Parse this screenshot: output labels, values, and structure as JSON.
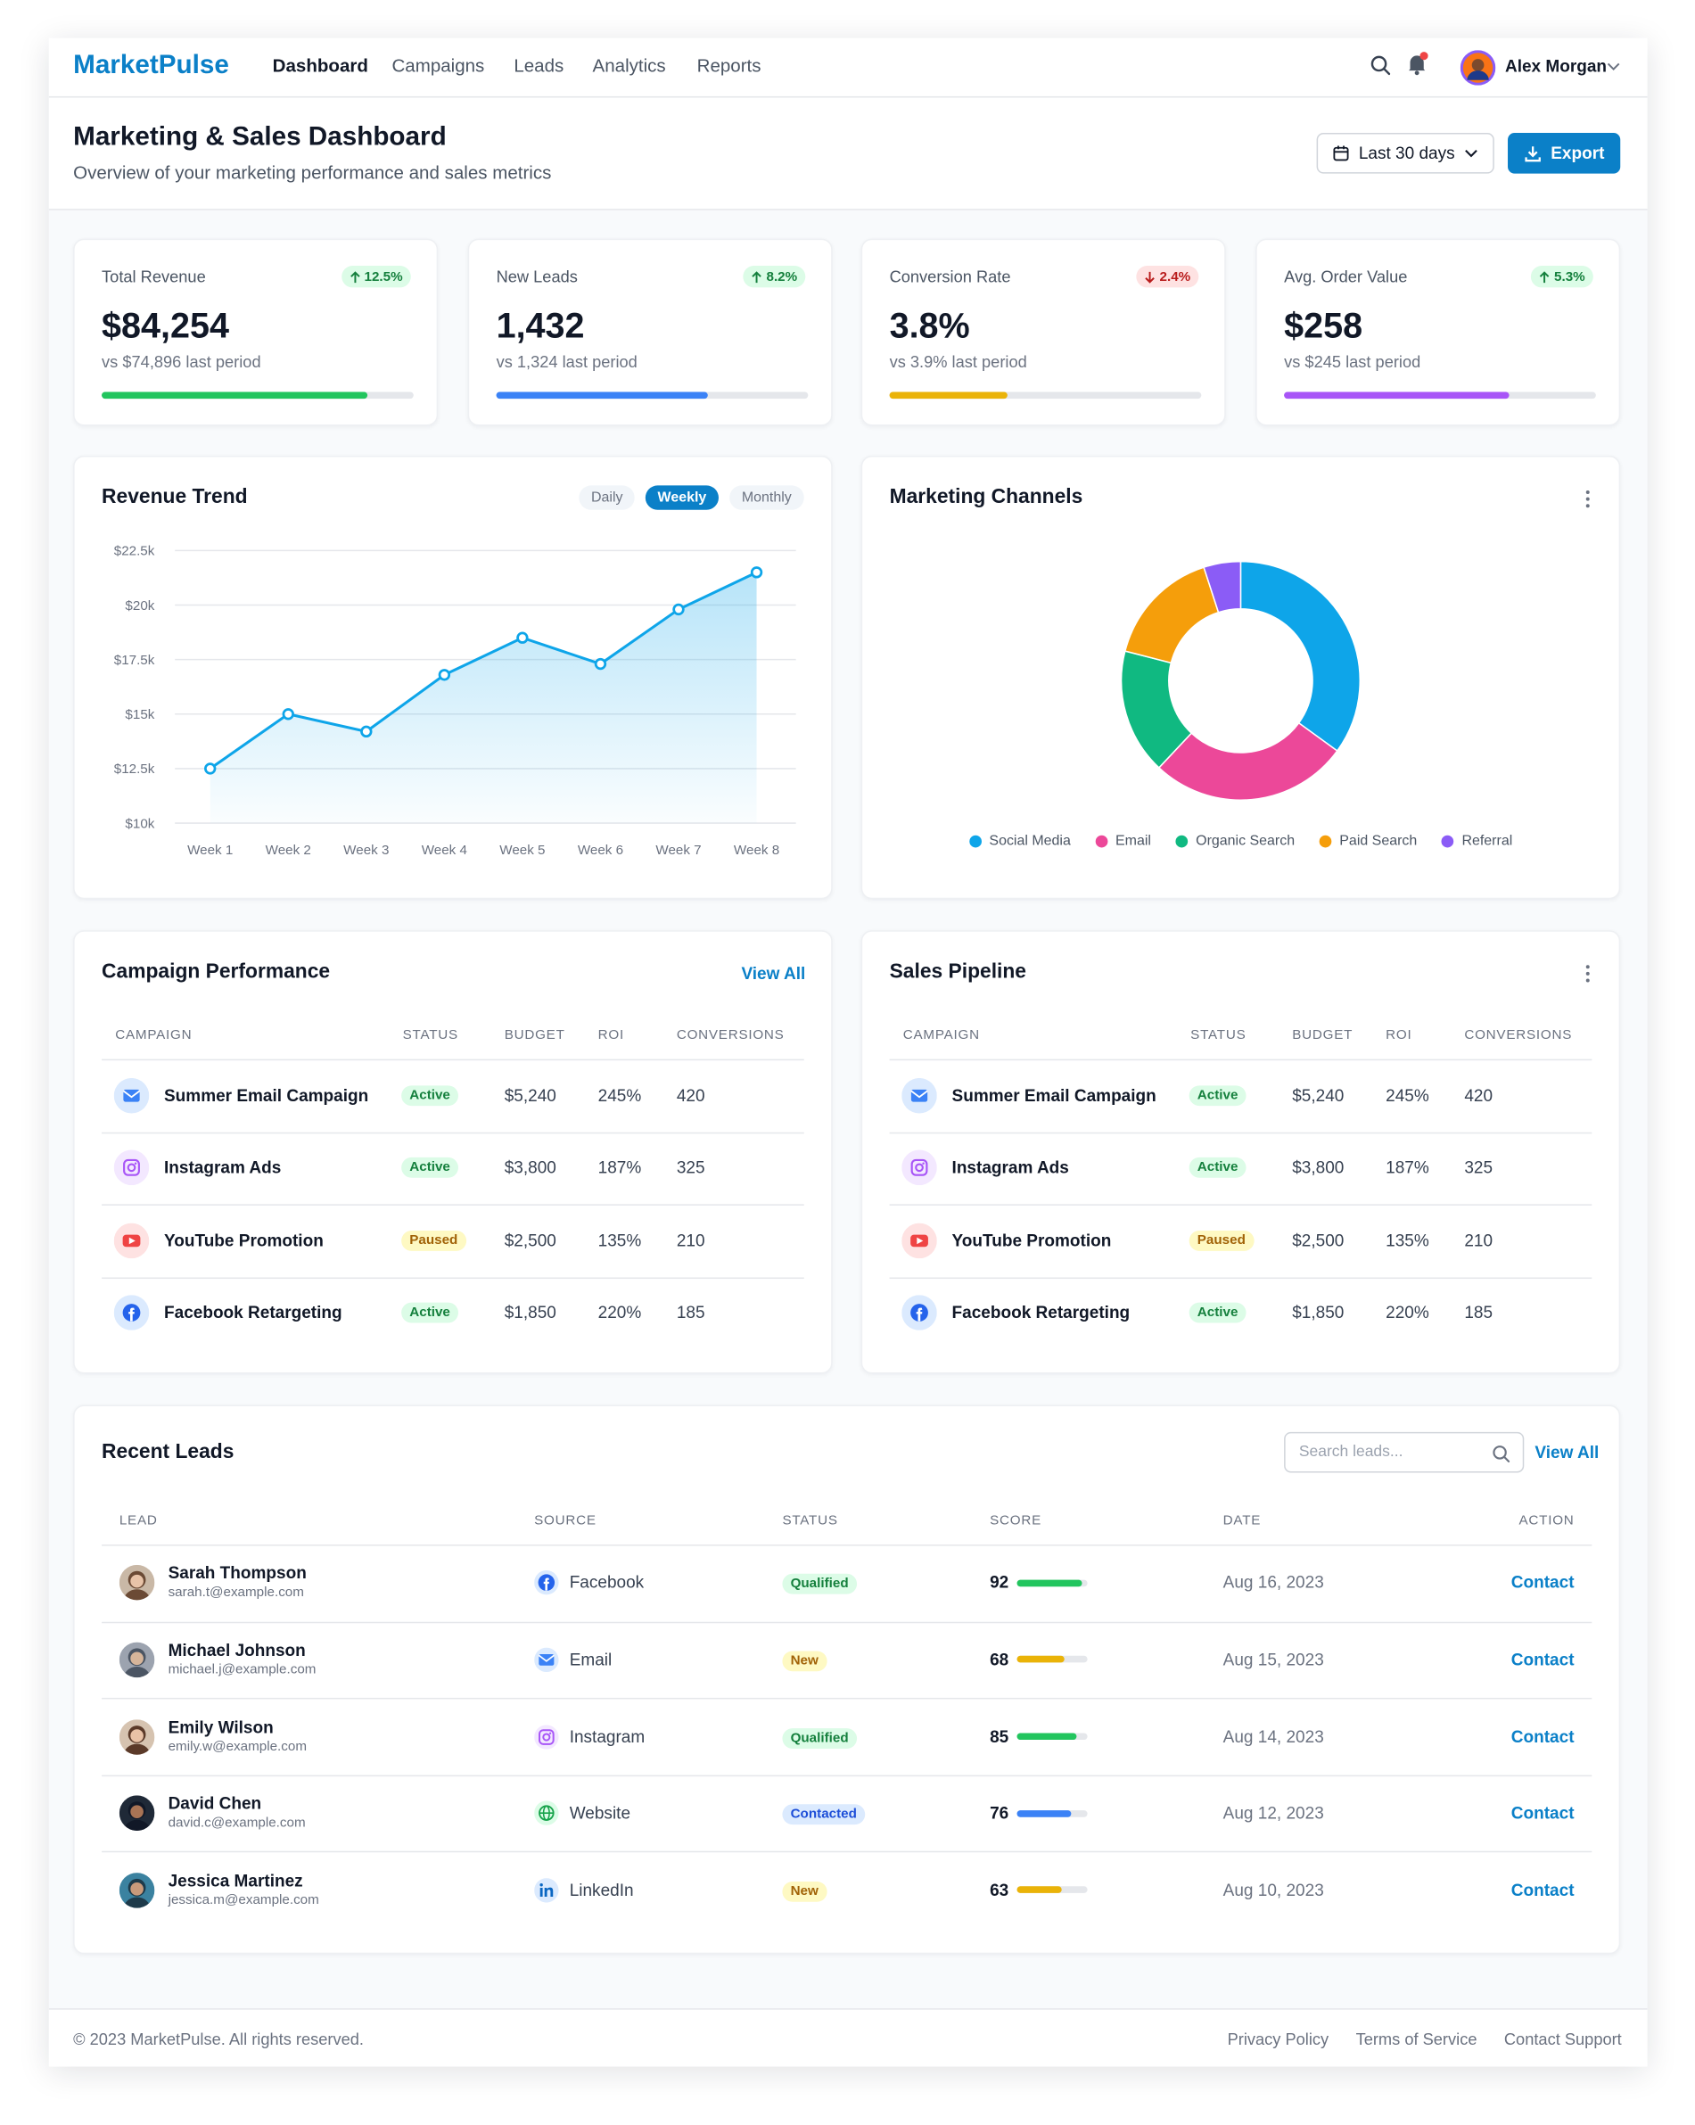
{
  "nav": {
    "brand": "MarketPulse",
    "links": [
      "Dashboard",
      "Campaigns",
      "Leads",
      "Analytics",
      "Reports"
    ],
    "user": "Alex Morgan"
  },
  "header": {
    "title": "Marketing & Sales Dashboard",
    "subtitle": "Overview of your marketing performance and sales metrics",
    "date_range": "Last 30 days",
    "export": "Export"
  },
  "kpis": [
    {
      "label": "Total Revenue",
      "change": "12.5%",
      "value": "$84,254",
      "comparison": "vs $74,896 last period",
      "progress": 85,
      "color": "#22c55e"
    },
    {
      "label": "New Leads",
      "change": "8.2%",
      "value": "1,432",
      "comparison": "vs 1,324 last period",
      "progress": 68,
      "color": "#3b82f6"
    },
    {
      "label": "Conversion Rate",
      "change": "2.4%",
      "value": "3.8%",
      "comparison": "vs 3.9% last period",
      "progress": 38,
      "color": "#eab308"
    },
    {
      "label": "Avg. Order Value",
      "change": "5.3%",
      "value": "$258",
      "comparison": "vs $245 last period",
      "progress": 72,
      "color": "#a855f7"
    }
  ],
  "revenue_trend_controls": [
    "Daily",
    "Weekly",
    "Monthly"
  ],
  "chart_data": [
    {
      "type": "line",
      "title": "Revenue Trend",
      "categories": [
        "Week 1",
        "Week 2",
        "Week 3",
        "Week 4",
        "Week 5",
        "Week 6",
        "Week 7",
        "Week 8"
      ],
      "values": [
        12500,
        15000,
        14200,
        16800,
        18500,
        17300,
        19800,
        21500
      ],
      "color": "#0ea5e9",
      "grid": true,
      "ylim": [
        10000,
        22500
      ],
      "yticks": [
        {
          "value": 10000,
          "label": "$10k"
        },
        {
          "value": 12500,
          "label": "$12.5k"
        },
        {
          "value": 15000,
          "label": "$15k"
        },
        {
          "value": 17500,
          "label": "$17.5k"
        },
        {
          "value": 20000,
          "label": "$20k"
        },
        {
          "value": 22500,
          "label": "$22.5k"
        }
      ]
    },
    {
      "type": "donut",
      "title": "Marketing Channels",
      "categories": [
        "Social Media",
        "Email",
        "Organic Search",
        "Paid Search",
        "Referral"
      ],
      "values": [
        35,
        27,
        17,
        16,
        5
      ],
      "colors": [
        "#0ea5e9",
        "#ec4899",
        "#10b981",
        "#f59e0b",
        "#8b5cf6"
      ]
    }
  ],
  "campaigns": {
    "title": "Campaign Performance",
    "action": "View All",
    "columns": [
      "CAMPAIGN",
      "STATUS",
      "BUDGET",
      "ROI",
      "CONVERSIONS"
    ],
    "rows": [
      [
        "Summer Email Campaign",
        "Active",
        "$5,240",
        "245%",
        420
      ],
      [
        "Instagram Ads",
        "Active",
        "$3,800",
        "187%",
        325
      ],
      [
        "YouTube Promotion",
        "Paused",
        "$2,500",
        "135%",
        210
      ],
      [
        "Facebook Retargeting",
        "Active",
        "$1,850",
        "220%",
        185
      ]
    ]
  },
  "pipeline": {
    "title": "Sales Pipeline",
    "columns": [
      "CAMPAIGN",
      "STATUS",
      "BUDGET",
      "ROI",
      "CONVERSIONS"
    ],
    "rows": [
      [
        "Summer Email Campaign",
        "Active",
        "$5,240",
        "245%",
        420
      ],
      [
        "Instagram Ads",
        "Active",
        "$3,800",
        "187%",
        325
      ],
      [
        "YouTube Promotion",
        "Paused",
        "$2,500",
        "135%",
        210
      ],
      [
        "Facebook Retargeting",
        "Active",
        "$1,850",
        "220%",
        185
      ]
    ]
  },
  "leads": {
    "title": "Recent Leads",
    "search_placeholder": "Search leads...",
    "action": "View All",
    "columns": [
      "LEAD",
      "SOURCE",
      "STATUS",
      "SCORE",
      "DATE",
      "ACTION"
    ],
    "rows": [
      {
        "name": "Sarah Thompson",
        "email": "sarah.t@example.com",
        "source": "Facebook",
        "status": "Qualified",
        "score": 92,
        "date": "Aug 16, 2023",
        "action": "Contact"
      },
      {
        "name": "Michael Johnson",
        "email": "michael.j@example.com",
        "source": "Email",
        "status": "New",
        "score": 68,
        "date": "Aug 15, 2023",
        "action": "Contact"
      },
      {
        "name": "Emily Wilson",
        "email": "emily.w@example.com",
        "source": "Instagram",
        "status": "Qualified",
        "score": 85,
        "date": "Aug 14, 2023",
        "action": "Contact"
      },
      {
        "name": "David Chen",
        "email": "david.c@example.com",
        "source": "Website",
        "status": "Contacted",
        "score": 76,
        "date": "Aug 12, 2023",
        "action": "Contact"
      },
      {
        "name": "Jessica Martinez",
        "email": "jessica.m@example.com",
        "source": "LinkedIn",
        "status": "New",
        "score": 63,
        "date": "Aug 10, 2023",
        "action": "Contact"
      }
    ]
  },
  "footer": {
    "copyright": "© 2023 MarketPulse. All rights reserved.",
    "links": [
      "Privacy Policy",
      "Terms of Service",
      "Contact Support"
    ]
  }
}
